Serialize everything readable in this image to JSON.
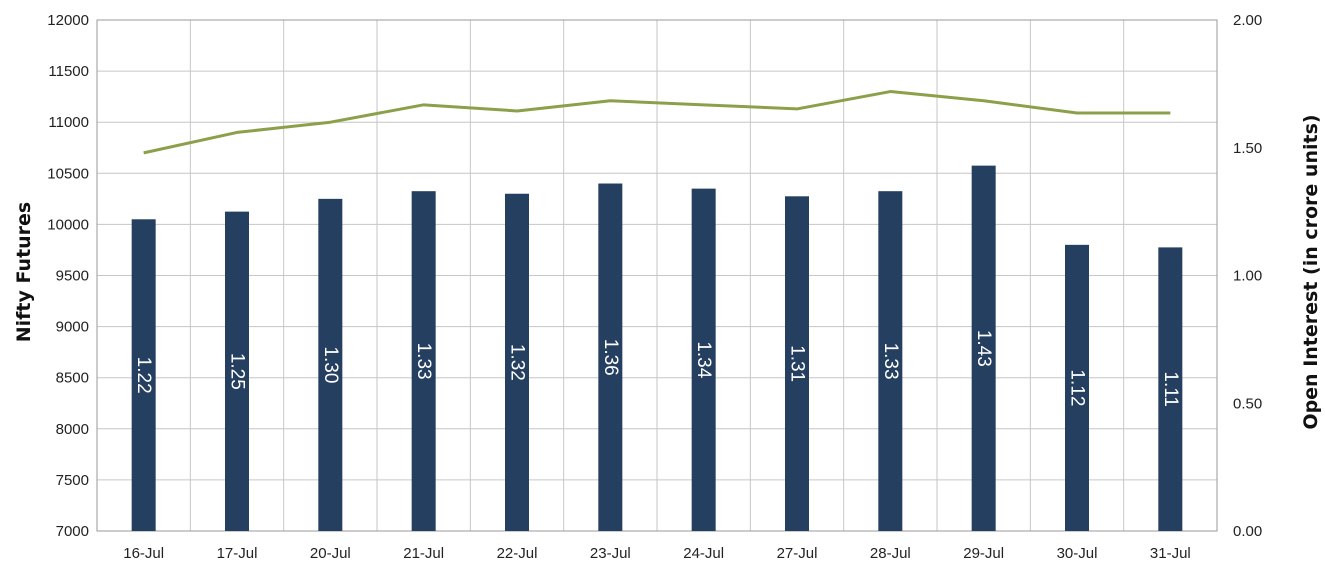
{
  "chart_data": {
    "type": "bar",
    "title": "",
    "categories": [
      "16-Jul",
      "17-Jul",
      "20-Jul",
      "21-Jul",
      "22-Jul",
      "23-Jul",
      "24-Jul",
      "27-Jul",
      "28-Jul",
      "29-Jul",
      "30-Jul",
      "31-Jul"
    ],
    "ylabel": "Nifty Futures",
    "y2label": "Open Interest (in crore units)",
    "ylim": [
      7000,
      12000
    ],
    "y2lim": [
      0.0,
      2.0
    ],
    "yticks": [
      "7000",
      "7500",
      "8000",
      "8500",
      "9000",
      "9500",
      "10000",
      "10500",
      "11000",
      "11500",
      "12000"
    ],
    "y2ticks": [
      "0.00",
      "0.50",
      "1.00",
      "1.50",
      "2.00"
    ],
    "grid": true,
    "series": [
      {
        "kind": "bar",
        "axis": "right",
        "color": "#243f60",
        "values": [
          1.22,
          1.25,
          1.3,
          1.33,
          1.32,
          1.36,
          1.34,
          1.31,
          1.33,
          1.43,
          1.12,
          1.11
        ],
        "labels": [
          "1.22",
          "1.25",
          "1.30",
          "1.33",
          "1.32",
          "1.36",
          "1.34",
          "1.31",
          "1.33",
          "1.43",
          "1.12",
          "1.11"
        ]
      },
      {
        "kind": "line",
        "axis": "left",
        "color": "#8ca04a",
        "values": [
          10700,
          10900,
          11000,
          11170,
          11110,
          11210,
          11170,
          11130,
          11300,
          11210,
          11090,
          11090
        ]
      }
    ]
  }
}
